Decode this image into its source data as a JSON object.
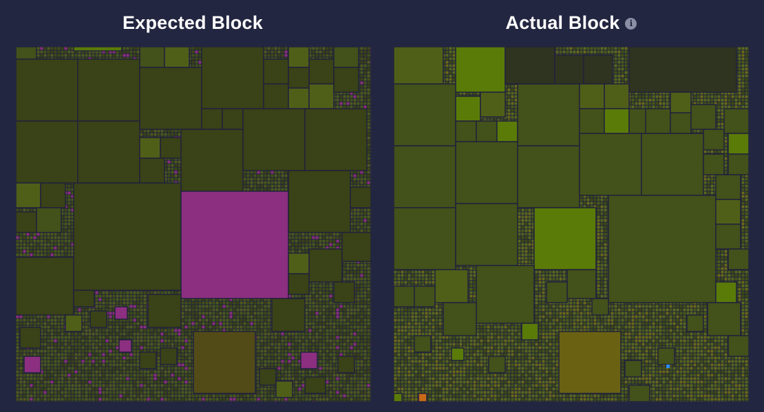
{
  "expected": {
    "title": "Expected Block",
    "blocks": [
      {
        "name": "large-magenta-tx",
        "color": "#8c2f80",
        "w": 156,
        "h": 156
      },
      {
        "name": "large-olive-tx",
        "color": "#524b18",
        "w": 90,
        "h": 90
      }
    ]
  },
  "actual": {
    "title": "Actual Block",
    "info_icon": "info-icon",
    "blocks": [
      {
        "name": "large-olive-tx",
        "color": "#6a6212",
        "w": 90,
        "h": 90
      }
    ]
  },
  "colors": {
    "background": "#232640",
    "olive_dark": "#3a4217",
    "olive": "#43511a",
    "olive_bright": "#5b7b08",
    "magenta": "#8c2f80",
    "gold": "#6a6212"
  }
}
